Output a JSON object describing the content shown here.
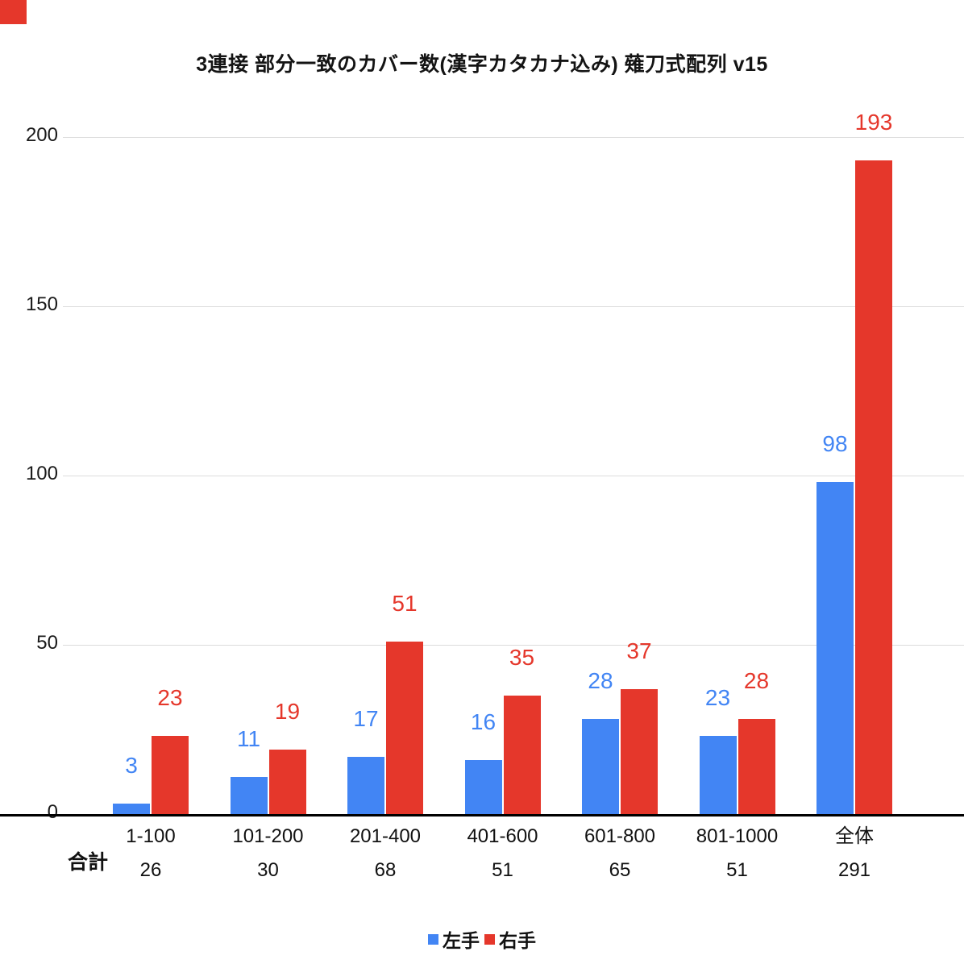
{
  "title": "3連接 部分一致のカバー数(漢字カタカナ込み) 薙刀式配列 v15",
  "corner_marker": {
    "color": "#e5372b"
  },
  "chart_data": {
    "type": "bar",
    "title": "3連接 部分一致のカバー数(漢字カタカナ込み) 薙刀式配列 v15",
    "categories": [
      "1-100",
      "101-200",
      "201-400",
      "401-600",
      "601-800",
      "801-1000",
      "全体"
    ],
    "series": [
      {
        "name": "左手",
        "key": "left-hand",
        "color": "#4285f4",
        "values": [
          3,
          11,
          17,
          16,
          28,
          23,
          98
        ]
      },
      {
        "name": "右手",
        "key": "right-hand",
        "color": "#e5372b",
        "values": [
          23,
          19,
          51,
          35,
          37,
          28,
          193
        ]
      }
    ],
    "totals_row_label": "合計",
    "totals": [
      26,
      30,
      68,
      51,
      65,
      51,
      291
    ],
    "xlabel": "",
    "ylabel": "",
    "ylim": [
      0,
      200
    ],
    "yticks": [
      0,
      50,
      100,
      150,
      200
    ],
    "grid": true,
    "legend_position": "bottom",
    "value_labels": true
  }
}
